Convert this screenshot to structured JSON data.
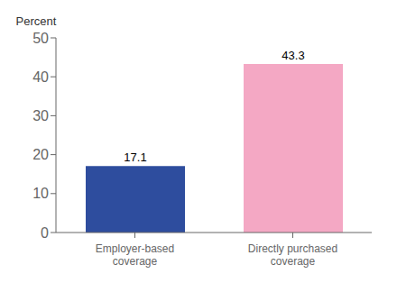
{
  "chart_data": {
    "type": "bar",
    "categories": [
      "Employer-based\ncoverage",
      "Directly purchased\ncoverage"
    ],
    "values": [
      17.1,
      43.3
    ],
    "colors": [
      "#2e4d9e",
      "#f4a8c4"
    ],
    "ylabel": "Percent",
    "ylim": [
      0,
      50
    ],
    "yticks": [
      0,
      10,
      20,
      30,
      40,
      50
    ],
    "data_labels": true,
    "grid": false
  }
}
